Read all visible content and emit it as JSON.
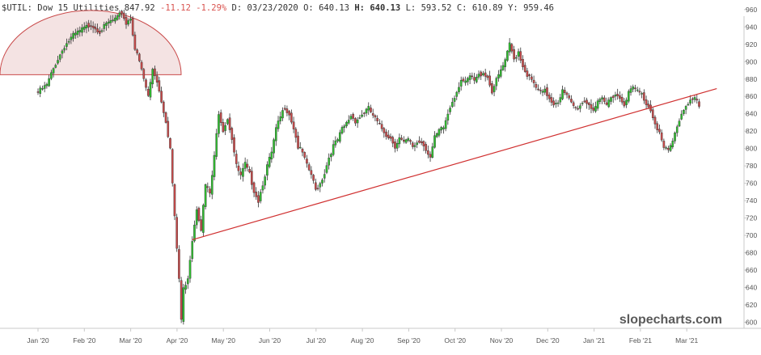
{
  "header": {
    "symbol": "$UTIL:",
    "name": "Dow 15 Utilities",
    "last": "847.92",
    "change": "-11.12",
    "change_pct": "-1.29%",
    "d_label": "D:",
    "date": "03/23/2020",
    "o_label": "O:",
    "open": "640.13",
    "h_label": "H:",
    "high": "640.13",
    "l_label": "L:",
    "low": "593.52",
    "c_label": "C:",
    "close": "610.89",
    "y_label": "Y:",
    "y_value": "959.46"
  },
  "watermark": "slopecharts.com",
  "colors": {
    "up": "#2fbf2f",
    "down": "#c94a4a",
    "wick": "#333333",
    "trendline": "#d03030",
    "arc_fill": "#f2dede",
    "arc_stroke": "#c94a4a",
    "axis": "#c8c8c8"
  },
  "chart_data": {
    "type": "candlestick",
    "x_tick_labels": [
      "Jan '20",
      "Feb '20",
      "Mar '20",
      "Apr '20",
      "May '20",
      "Jun '20",
      "Jul '20",
      "Aug '20",
      "Sep '20",
      "Oct '20",
      "Nov '20",
      "Dec '20",
      "Jan '21",
      "Feb '21",
      "Mar '21"
    ],
    "y_ticks": [
      600,
      620,
      640,
      660,
      680,
      700,
      720,
      740,
      760,
      780,
      800,
      820,
      840,
      860,
      880,
      900,
      920,
      940,
      960
    ],
    "ylim": [
      590,
      970
    ],
    "x_range": [
      0,
      308
    ],
    "path": [
      [
        0,
        865
      ],
      [
        4,
        873
      ],
      [
        8,
        898
      ],
      [
        12,
        918
      ],
      [
        16,
        930
      ],
      [
        20,
        937
      ],
      [
        24,
        943
      ],
      [
        28,
        935
      ],
      [
        32,
        945
      ],
      [
        36,
        950
      ],
      [
        38,
        957
      ],
      [
        40,
        944
      ],
      [
        42,
        951
      ],
      [
        44,
        915
      ],
      [
        46,
        900
      ],
      [
        48,
        880
      ],
      [
        50,
        860
      ],
      [
        52,
        892
      ],
      [
        54,
        878
      ],
      [
        56,
        855
      ],
      [
        58,
        832
      ],
      [
        60,
        800
      ],
      [
        62,
        720
      ],
      [
        64,
        650
      ],
      [
        65,
        603
      ],
      [
        66,
        638
      ],
      [
        68,
        652
      ],
      [
        70,
        695
      ],
      [
        72,
        732
      ],
      [
        74,
        708
      ],
      [
        76,
        758
      ],
      [
        78,
        748
      ],
      [
        80,
        790
      ],
      [
        82,
        842
      ],
      [
        84,
        822
      ],
      [
        86,
        835
      ],
      [
        88,
        812
      ],
      [
        90,
        780
      ],
      [
        92,
        768
      ],
      [
        94,
        782
      ],
      [
        96,
        770
      ],
      [
        98,
        752
      ],
      [
        100,
        740
      ],
      [
        102,
        760
      ],
      [
        104,
        780
      ],
      [
        106,
        795
      ],
      [
        108,
        822
      ],
      [
        110,
        836
      ],
      [
        112,
        848
      ],
      [
        114,
        840
      ],
      [
        116,
        824
      ],
      [
        118,
        802
      ],
      [
        120,
        795
      ],
      [
        122,
        780
      ],
      [
        124,
        770
      ],
      [
        126,
        752
      ],
      [
        128,
        760
      ],
      [
        130,
        772
      ],
      [
        132,
        790
      ],
      [
        134,
        803
      ],
      [
        136,
        810
      ],
      [
        138,
        822
      ],
      [
        140,
        829
      ],
      [
        142,
        838
      ],
      [
        144,
        832
      ],
      [
        146,
        836
      ],
      [
        148,
        842
      ],
      [
        150,
        846
      ],
      [
        152,
        838
      ],
      [
        154,
        830
      ],
      [
        156,
        823
      ],
      [
        158,
        816
      ],
      [
        160,
        812
      ],
      [
        162,
        803
      ],
      [
        164,
        812
      ],
      [
        166,
        806
      ],
      [
        168,
        810
      ],
      [
        170,
        802
      ],
      [
        172,
        807
      ],
      [
        174,
        808
      ],
      [
        176,
        800
      ],
      [
        178,
        790
      ],
      [
        180,
        812
      ],
      [
        182,
        820
      ],
      [
        184,
        824
      ],
      [
        186,
        840
      ],
      [
        188,
        855
      ],
      [
        190,
        866
      ],
      [
        192,
        880
      ],
      [
        194,
        875
      ],
      [
        196,
        883
      ],
      [
        198,
        878
      ],
      [
        200,
        884
      ],
      [
        202,
        888
      ],
      [
        204,
        882
      ],
      [
        206,
        866
      ],
      [
        208,
        878
      ],
      [
        210,
        890
      ],
      [
        212,
        900
      ],
      [
        214,
        920
      ],
      [
        216,
        903
      ],
      [
        218,
        912
      ],
      [
        220,
        895
      ],
      [
        222,
        885
      ],
      [
        224,
        878
      ],
      [
        226,
        870
      ],
      [
        228,
        864
      ],
      [
        230,
        866
      ],
      [
        232,
        858
      ],
      [
        234,
        852
      ],
      [
        236,
        855
      ],
      [
        238,
        866
      ],
      [
        240,
        860
      ],
      [
        242,
        852
      ],
      [
        244,
        846
      ],
      [
        246,
        850
      ],
      [
        248,
        855
      ],
      [
        250,
        851
      ],
      [
        252,
        845
      ],
      [
        254,
        852
      ],
      [
        256,
        856
      ],
      [
        258,
        850
      ],
      [
        260,
        860
      ],
      [
        262,
        863
      ],
      [
        264,
        858
      ],
      [
        266,
        852
      ],
      [
        268,
        864
      ],
      [
        270,
        870
      ],
      [
        272,
        866
      ],
      [
        274,
        862
      ],
      [
        276,
        852
      ],
      [
        278,
        845
      ],
      [
        280,
        830
      ],
      [
        282,
        818
      ],
      [
        284,
        800
      ],
      [
        286,
        797
      ],
      [
        288,
        808
      ],
      [
        290,
        826
      ],
      [
        292,
        840
      ],
      [
        294,
        850
      ],
      [
        296,
        856
      ],
      [
        298,
        858
      ],
      [
        300,
        848
      ]
    ],
    "annotations": [
      {
        "type": "trendline",
        "from": [
          70,
          695
        ],
        "to": [
          308,
          869
        ]
      },
      {
        "type": "arc",
        "x_from": 0,
        "x_to": 70,
        "base": 885,
        "peak": 959
      }
    ]
  }
}
